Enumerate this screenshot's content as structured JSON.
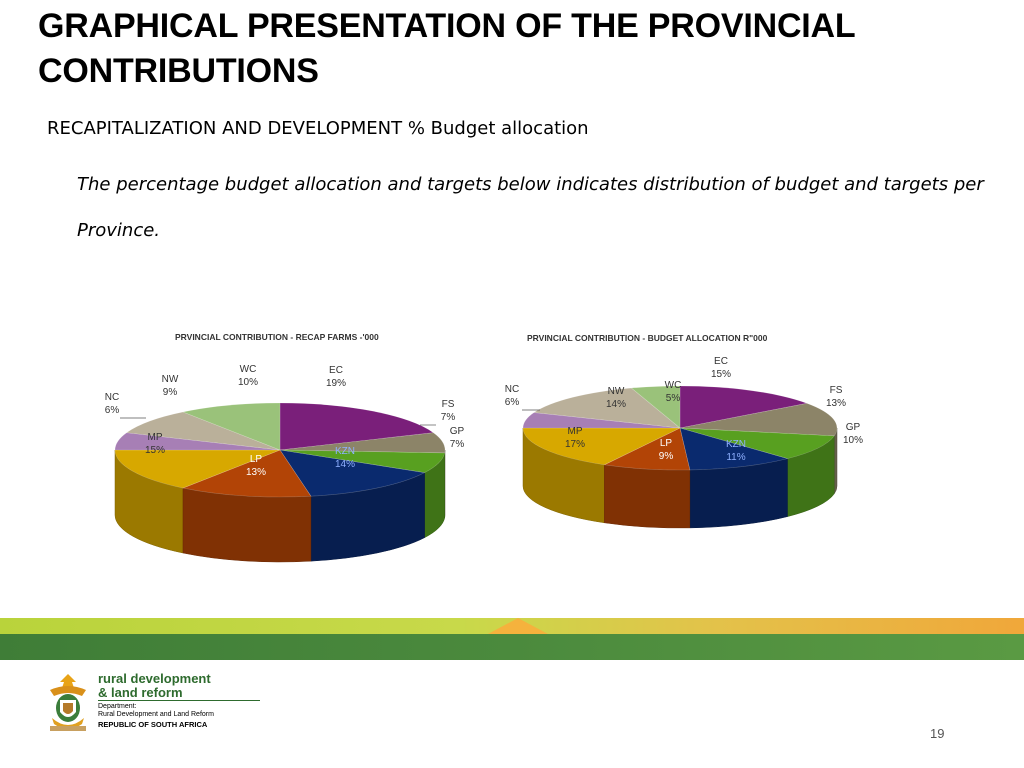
{
  "slide": {
    "title": "GRAPHICAL PRESENTATION OF THE PROVINCIAL CONTRIBUTIONS",
    "subtitle": "RECAPITALIZATION AND DEVELOPMENT % Budget allocation",
    "description": "The percentage budget allocation  and targets below  indicates distribution of budget and targets per Province.",
    "page_number": "19"
  },
  "footer": {
    "department_line1": "rural development",
    "department_line2": "& land reform",
    "department_label": "Department:",
    "department_full": "Rural Development and Land Reform",
    "country": "REPUBLIC OF SOUTH AFRICA",
    "crest_icon": "coat-of-arms-icon"
  },
  "colors": {
    "EC": "#7a1f7a",
    "FS": "#8c8468",
    "GP": "#58a020",
    "KZN": "#0a2a6e",
    "LP": "#b24406",
    "MP": "#d7a800",
    "NC": "#a77fb5",
    "NW": "#bab09a",
    "WC": "#9ac27a"
  },
  "chart_data": [
    {
      "type": "pie",
      "title": "PRVINCIAL  CONTRIBUTION  - RECAP FARMS   -'000",
      "categories": [
        "EC",
        "FS",
        "GP",
        "KZN",
        "LP",
        "MP",
        "NC",
        "NW",
        "WC"
      ],
      "values": [
        19,
        7,
        7,
        14,
        13,
        15,
        6,
        9,
        10
      ],
      "labels": [
        "19%",
        "7%",
        "7%",
        "14%",
        "13%",
        "15%",
        "6%",
        "9%",
        "10%"
      ]
    },
    {
      "type": "pie",
      "title": "PRVINCIAL CONTRIBUTION  - BUDGET ALLOCATION R\"000",
      "categories": [
        "EC",
        "FS",
        "GP",
        "KZN",
        "LP",
        "MP",
        "NC",
        "NW",
        "WC"
      ],
      "values": [
        15,
        13,
        10,
        11,
        9,
        17,
        6,
        14,
        5
      ],
      "labels": [
        "15%",
        "13%",
        "10%",
        "11%",
        "9%",
        "17%",
        "6%",
        "14%",
        "5%"
      ]
    }
  ]
}
